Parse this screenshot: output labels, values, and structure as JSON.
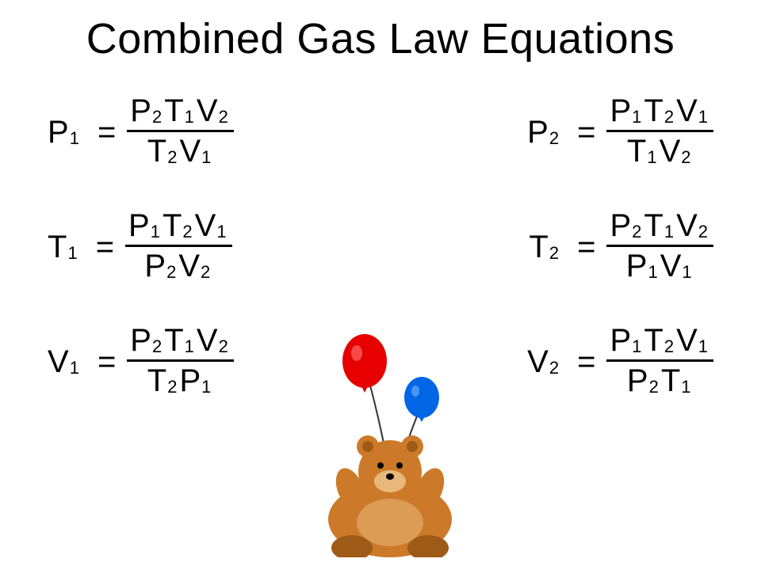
{
  "title": "Combined Gas Law Equations",
  "colors": {
    "text": "#000000",
    "background": "#ffffff",
    "balloon_red": "#e60000",
    "balloon_blue": "#0066e6",
    "bear_body": "#cc7a29",
    "bear_dark": "#9e5a17",
    "bear_muzzle": "#e8b87a"
  },
  "fontsize_title": 54,
  "fontsize_eq": 40,
  "equations": [
    {
      "lhs": [
        [
          "P",
          "1"
        ]
      ],
      "num": [
        [
          "P",
          "2"
        ],
        [
          "T",
          "1"
        ],
        [
          "V",
          "2"
        ]
      ],
      "den": [
        [
          "T",
          "2"
        ],
        [
          "V",
          "1"
        ]
      ]
    },
    {
      "lhs": [
        [
          "P",
          "2"
        ]
      ],
      "num": [
        [
          "P",
          "1"
        ],
        [
          "T",
          "2"
        ],
        [
          "V",
          "1"
        ]
      ],
      "den": [
        [
          "T",
          "1"
        ],
        [
          "V",
          "2"
        ]
      ]
    },
    {
      "lhs": [
        [
          "T",
          "1"
        ]
      ],
      "num": [
        [
          "P",
          "1"
        ],
        [
          "T",
          "2"
        ],
        [
          "V",
          "1"
        ]
      ],
      "den": [
        [
          "P",
          "2"
        ],
        [
          "V",
          "2"
        ]
      ]
    },
    {
      "lhs": [
        [
          "T",
          "2"
        ]
      ],
      "num": [
        [
          "P",
          "2"
        ],
        [
          "T",
          "1"
        ],
        [
          "V",
          "2"
        ]
      ],
      "den": [
        [
          "P",
          "1"
        ],
        [
          "V",
          "1"
        ]
      ]
    },
    {
      "lhs": [
        [
          "V",
          "1"
        ]
      ],
      "num": [
        [
          "P",
          "2"
        ],
        [
          "T",
          "1"
        ],
        [
          "V",
          "2"
        ]
      ],
      "den": [
        [
          "T",
          "2"
        ],
        [
          "P",
          "1"
        ]
      ]
    },
    {
      "lhs": [
        [
          "V",
          "2"
        ]
      ],
      "num": [
        [
          "P",
          "1"
        ],
        [
          "T",
          "2"
        ],
        [
          "V",
          "1"
        ]
      ],
      "den": [
        [
          "P",
          "2"
        ],
        [
          "T",
          "1"
        ]
      ]
    }
  ]
}
